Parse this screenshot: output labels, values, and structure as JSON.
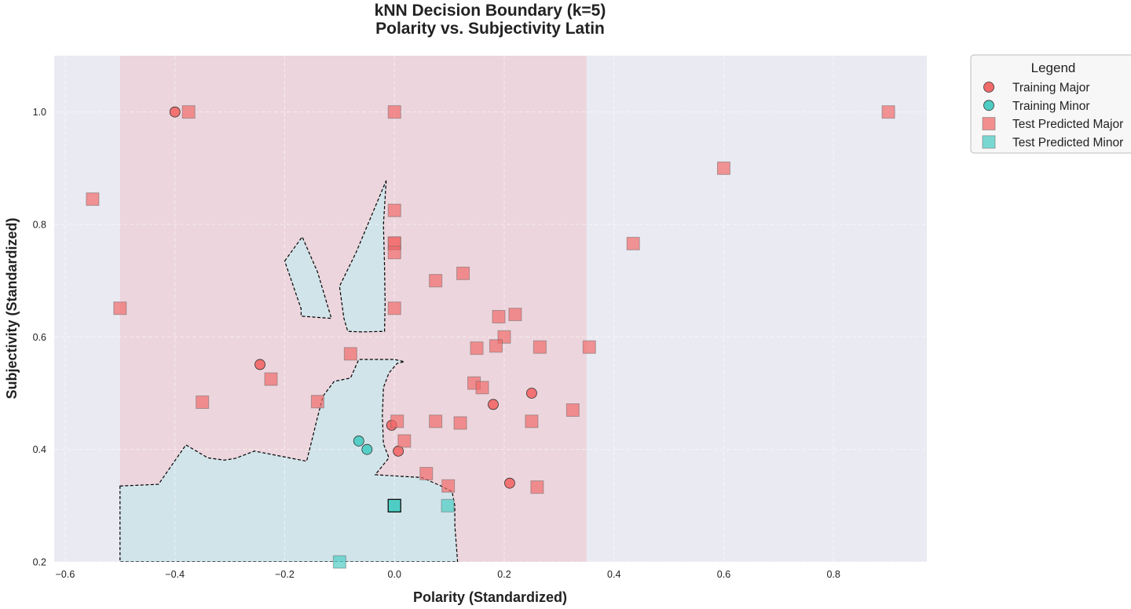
{
  "chart_data": {
    "type": "scatter",
    "title": [
      "kNN Decision Boundary (k=5)",
      "Polarity vs. Subjectivity Latin"
    ],
    "xlabel": "Polarity (Standardized)",
    "ylabel": "Subjectivity (Standardized)",
    "xlim": [
      -0.62,
      0.97
    ],
    "ylim": [
      0.2,
      1.1
    ],
    "xticks": [
      -0.6,
      -0.4,
      -0.2,
      0.0,
      0.2,
      0.4,
      0.6,
      0.8
    ],
    "xtick_labels": [
      "−0.6",
      "−0.4",
      "−0.2",
      "0.0",
      "0.2",
      "0.4",
      "0.6",
      "0.8"
    ],
    "yticks": [
      0.2,
      0.4,
      0.6,
      0.8,
      1.0
    ],
    "ytick_labels": [
      "0.2",
      "0.4",
      "0.6",
      "0.8",
      "1.0"
    ],
    "grid": true,
    "legend": {
      "title": "Legend",
      "placement": "outside-right",
      "entries": [
        "Training Major",
        "Training Minor",
        "Test Predicted Major",
        "Test Predicted Minor"
      ]
    },
    "colors": {
      "background": "#eaeaf2",
      "major_region": "#ecd5dc",
      "minor_region": "#d1e4ea",
      "major": "#f26b6b",
      "minor": "#4ecdc4",
      "boundary": "#000000"
    },
    "decision_regions": {
      "x_range": [
        -0.5,
        0.35
      ],
      "y_range": [
        0.2,
        1.1
      ],
      "major_fill": "Major",
      "minor_regions": [
        [
          [
            -0.5,
            0.335
          ],
          [
            -0.43,
            0.338
          ],
          [
            -0.38,
            0.408
          ],
          [
            -0.34,
            0.385
          ],
          [
            -0.31,
            0.381
          ],
          [
            -0.29,
            0.384
          ],
          [
            -0.255,
            0.397
          ],
          [
            -0.16,
            0.379
          ],
          [
            -0.15,
            0.418
          ],
          [
            -0.14,
            0.458
          ],
          [
            -0.13,
            0.495
          ],
          [
            -0.11,
            0.521
          ],
          [
            -0.08,
            0.527
          ],
          [
            -0.065,
            0.56
          ],
          [
            0.0,
            0.56
          ],
          [
            0.018,
            0.556
          ],
          [
            0.005,
            0.553
          ],
          [
            -0.01,
            0.536
          ],
          [
            -0.02,
            0.51
          ],
          [
            -0.022,
            0.46
          ],
          [
            -0.02,
            0.41
          ],
          [
            -0.01,
            0.385
          ],
          [
            -0.035,
            0.355
          ],
          [
            0.05,
            0.35
          ],
          [
            0.085,
            0.335
          ],
          [
            0.105,
            0.325
          ],
          [
            0.11,
            0.3
          ],
          [
            0.11,
            0.265
          ],
          [
            0.115,
            0.2
          ],
          [
            -0.5,
            0.2
          ]
        ],
        [
          [
            -0.2,
            0.735
          ],
          [
            -0.168,
            0.778
          ],
          [
            -0.14,
            0.715
          ],
          [
            -0.115,
            0.633
          ],
          [
            -0.17,
            0.637
          ],
          [
            -0.17,
            0.65
          ],
          [
            -0.2,
            0.735
          ]
        ],
        [
          [
            -0.015,
            0.878
          ],
          [
            -0.02,
            0.8
          ],
          [
            -0.018,
            0.725
          ],
          [
            -0.017,
            0.66
          ],
          [
            -0.018,
            0.61
          ],
          [
            -0.06,
            0.609
          ],
          [
            -0.085,
            0.61
          ],
          [
            -0.092,
            0.633
          ],
          [
            -0.1,
            0.69
          ],
          [
            -0.07,
            0.75
          ],
          [
            -0.04,
            0.82
          ],
          [
            -0.015,
            0.878
          ]
        ]
      ]
    },
    "series": [
      {
        "name": "Training Major",
        "marker": "circle",
        "color": "#f26b6b",
        "x": [
          -0.4,
          -0.245,
          -0.005,
          0.007,
          0.18,
          0.21,
          0.25
        ],
        "y": [
          1.0,
          0.551,
          0.443,
          0.397,
          0.48,
          0.34,
          0.5
        ]
      },
      {
        "name": "Training Minor",
        "marker": "circle",
        "color": "#4ecdc4",
        "x": [
          -0.065,
          -0.05
        ],
        "y": [
          0.415,
          0.4
        ]
      },
      {
        "name": "Test Predicted Major",
        "marker": "square",
        "color": "#f26b6b",
        "x": [
          -0.375,
          -0.55,
          -0.5,
          -0.35,
          -0.225,
          -0.14,
          -0.08,
          0.0,
          0.0,
          0.0,
          0.0,
          0.0,
          0.0,
          0.075,
          0.125,
          0.19,
          0.2,
          0.22,
          0.15,
          0.185,
          0.265,
          0.355,
          0.145,
          0.16,
          0.005,
          0.018,
          0.075,
          0.12,
          0.25,
          0.325,
          0.058,
          0.098,
          0.26,
          0.435,
          0.6,
          0.9
        ],
        "y": [
          1.0,
          0.845,
          0.651,
          0.484,
          0.525,
          0.485,
          0.57,
          1.0,
          0.825,
          0.766,
          0.767,
          0.75,
          0.651,
          0.7,
          0.713,
          0.636,
          0.6,
          0.64,
          0.58,
          0.584,
          0.582,
          0.582,
          0.518,
          0.51,
          0.45,
          0.415,
          0.45,
          0.447,
          0.45,
          0.47,
          0.357,
          0.335,
          0.333,
          0.766,
          0.9,
          1.0
        ]
      },
      {
        "name": "Test Predicted Minor",
        "marker": "square",
        "color": "#4ecdc4",
        "x": [
          0.0,
          0.097,
          -0.1
        ],
        "y": [
          0.3,
          0.3,
          0.2
        ]
      }
    ]
  }
}
